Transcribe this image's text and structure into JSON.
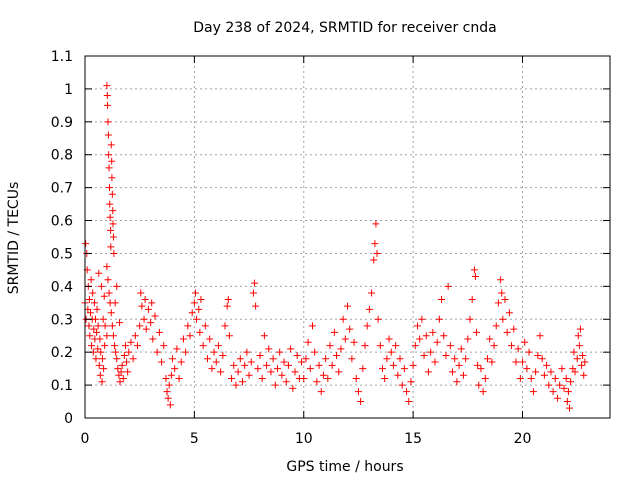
{
  "chart_data": {
    "type": "scatter",
    "title": "Day 238 of 2024, SRMTID for receiver cnda",
    "xlabel": "GPS time / hours",
    "ylabel": "SRMTID / TECUs",
    "xlim": [
      0,
      24
    ],
    "ylim": [
      0,
      1.1
    ],
    "xticks": [
      0,
      5,
      10,
      15,
      20
    ],
    "xtick_labels": [
      "0",
      "5",
      "10",
      "15",
      "20"
    ],
    "yticks": [
      0,
      0.1,
      0.2,
      0.3,
      0.4,
      0.5,
      0.6,
      0.7,
      0.8,
      0.9,
      1,
      1.1
    ],
    "ytick_labels": [
      "0",
      "0.1",
      "0.2",
      "0.3",
      "0.4",
      "0.5",
      "0.6",
      "0.7",
      "0.8",
      "0.9",
      "1",
      "1.1"
    ],
    "grid": true,
    "marker": "plus",
    "color": "#ff0000",
    "series": [
      {
        "name": "SRMTID",
        "points": [
          [
            0.0,
            0.35
          ],
          [
            0.03,
            0.53
          ],
          [
            0.05,
            0.3
          ],
          [
            0.08,
            0.5
          ],
          [
            0.1,
            0.45
          ],
          [
            0.13,
            0.33
          ],
          [
            0.15,
            0.4
          ],
          [
            0.18,
            0.28
          ],
          [
            0.2,
            0.36
          ],
          [
            0.22,
            0.25
          ],
          [
            0.25,
            0.32
          ],
          [
            0.28,
            0.42
          ],
          [
            0.3,
            0.22
          ],
          [
            0.33,
            0.3
          ],
          [
            0.35,
            0.38
          ],
          [
            0.38,
            0.2
          ],
          [
            0.4,
            0.27
          ],
          [
            0.43,
            0.35
          ],
          [
            0.45,
            0.24
          ],
          [
            0.48,
            0.3
          ],
          [
            0.5,
            0.18
          ],
          [
            0.53,
            0.26
          ],
          [
            0.55,
            0.33
          ],
          [
            0.58,
            0.21
          ],
          [
            0.6,
            0.28
          ],
          [
            0.63,
            0.44
          ],
          [
            0.65,
            0.16
          ],
          [
            0.68,
            0.24
          ],
          [
            0.7,
            0.13
          ],
          [
            0.72,
            0.2
          ],
          [
            0.75,
            0.4
          ],
          [
            0.78,
            0.11
          ],
          [
            0.8,
            0.18
          ],
          [
            0.83,
            0.3
          ],
          [
            0.85,
            0.15
          ],
          [
            0.88,
            0.37
          ],
          [
            0.9,
            0.22
          ],
          [
            0.92,
            0.28
          ],
          [
            1.0,
            1.01
          ],
          [
            1.02,
            0.98
          ],
          [
            1.03,
            0.95
          ],
          [
            1.05,
            0.9
          ],
          [
            1.07,
            0.86
          ],
          [
            1.08,
            0.8
          ],
          [
            1.1,
            0.76
          ],
          [
            1.12,
            0.7
          ],
          [
            1.13,
            0.65
          ],
          [
            1.15,
            0.61
          ],
          [
            1.17,
            0.57
          ],
          [
            1.18,
            0.52
          ],
          [
            1.2,
            0.83
          ],
          [
            1.22,
            0.78
          ],
          [
            1.23,
            0.73
          ],
          [
            1.25,
            0.68
          ],
          [
            1.27,
            0.63
          ],
          [
            1.28,
            0.59
          ],
          [
            1.3,
            0.55
          ],
          [
            1.32,
            0.5
          ],
          [
            1.0,
            0.46
          ],
          [
            1.05,
            0.42
          ],
          [
            1.1,
            0.38
          ],
          [
            1.15,
            0.35
          ],
          [
            1.2,
            0.32
          ],
          [
            1.25,
            0.28
          ],
          [
            1.3,
            0.25
          ],
          [
            1.35,
            0.22
          ],
          [
            1.4,
            0.2
          ],
          [
            1.45,
            0.18
          ],
          [
            1.5,
            0.15
          ],
          [
            1.55,
            0.13
          ],
          [
            1.6,
            0.11
          ],
          [
            1.65,
            0.14
          ],
          [
            1.7,
            0.16
          ],
          [
            1.75,
            0.12
          ],
          [
            1.8,
            0.19
          ],
          [
            1.85,
            0.22
          ],
          [
            1.9,
            0.17
          ],
          [
            1.95,
            0.14
          ],
          [
            1.0,
            0.25
          ],
          [
            1.38,
            0.35
          ],
          [
            1.45,
            0.4
          ],
          [
            1.58,
            0.29
          ],
          [
            2.0,
            0.2
          ],
          [
            2.1,
            0.23
          ],
          [
            2.2,
            0.18
          ],
          [
            2.3,
            0.25
          ],
          [
            2.4,
            0.22
          ],
          [
            2.5,
            0.28
          ],
          [
            2.55,
            0.38
          ],
          [
            2.6,
            0.34
          ],
          [
            2.7,
            0.3
          ],
          [
            2.75,
            0.36
          ],
          [
            2.8,
            0.27
          ],
          [
            2.9,
            0.33
          ],
          [
            3.0,
            0.29
          ],
          [
            3.05,
            0.35
          ],
          [
            3.1,
            0.24
          ],
          [
            3.2,
            0.31
          ],
          [
            3.3,
            0.2
          ],
          [
            3.4,
            0.26
          ],
          [
            3.5,
            0.17
          ],
          [
            3.6,
            0.22
          ],
          [
            3.7,
            0.12
          ],
          [
            3.75,
            0.08
          ],
          [
            3.8,
            0.06
          ],
          [
            3.85,
            0.1
          ],
          [
            3.9,
            0.04
          ],
          [
            3.95,
            0.13
          ],
          [
            4.0,
            0.18
          ],
          [
            4.1,
            0.15
          ],
          [
            4.2,
            0.21
          ],
          [
            4.3,
            0.12
          ],
          [
            4.4,
            0.17
          ],
          [
            4.5,
            0.24
          ],
          [
            4.6,
            0.2
          ],
          [
            4.7,
            0.28
          ],
          [
            4.8,
            0.25
          ],
          [
            4.9,
            0.32
          ],
          [
            5.0,
            0.35
          ],
          [
            5.05,
            0.38
          ],
          [
            5.1,
            0.3
          ],
          [
            5.2,
            0.33
          ],
          [
            5.25,
            0.26
          ],
          [
            5.3,
            0.36
          ],
          [
            5.4,
            0.22
          ],
          [
            5.5,
            0.28
          ],
          [
            5.6,
            0.18
          ],
          [
            5.7,
            0.24
          ],
          [
            5.8,
            0.15
          ],
          [
            5.9,
            0.2
          ],
          [
            6.0,
            0.17
          ],
          [
            6.1,
            0.22
          ],
          [
            6.2,
            0.14
          ],
          [
            6.3,
            0.19
          ],
          [
            6.4,
            0.28
          ],
          [
            6.5,
            0.34
          ],
          [
            6.55,
            0.36
          ],
          [
            6.6,
            0.25
          ],
          [
            6.7,
            0.12
          ],
          [
            6.8,
            0.16
          ],
          [
            6.9,
            0.1
          ],
          [
            7.0,
            0.14
          ],
          [
            7.1,
            0.18
          ],
          [
            7.2,
            0.11
          ],
          [
            7.3,
            0.16
          ],
          [
            7.4,
            0.2
          ],
          [
            7.5,
            0.13
          ],
          [
            7.6,
            0.17
          ],
          [
            7.7,
            0.38
          ],
          [
            7.75,
            0.41
          ],
          [
            7.8,
            0.34
          ],
          [
            7.9,
            0.15
          ],
          [
            8.0,
            0.19
          ],
          [
            8.1,
            0.12
          ],
          [
            8.2,
            0.25
          ],
          [
            8.3,
            0.16
          ],
          [
            8.4,
            0.21
          ],
          [
            8.5,
            0.14
          ],
          [
            8.6,
            0.18
          ],
          [
            8.7,
            0.1
          ],
          [
            8.8,
            0.15
          ],
          [
            8.9,
            0.2
          ],
          [
            9.0,
            0.13
          ],
          [
            9.1,
            0.17
          ],
          [
            9.2,
            0.11
          ],
          [
            9.3,
            0.16
          ],
          [
            9.4,
            0.21
          ],
          [
            9.5,
            0.09
          ],
          [
            9.6,
            0.14
          ],
          [
            9.7,
            0.19
          ],
          [
            9.8,
            0.12
          ],
          [
            9.9,
            0.17
          ],
          [
            10.0,
            0.12
          ],
          [
            10.1,
            0.18
          ],
          [
            10.2,
            0.23
          ],
          [
            10.3,
            0.15
          ],
          [
            10.4,
            0.28
          ],
          [
            10.5,
            0.2
          ],
          [
            10.6,
            0.11
          ],
          [
            10.7,
            0.16
          ],
          [
            10.8,
            0.08
          ],
          [
            10.9,
            0.13
          ],
          [
            11.0,
            0.18
          ],
          [
            11.1,
            0.12
          ],
          [
            11.2,
            0.22
          ],
          [
            11.3,
            0.16
          ],
          [
            11.4,
            0.26
          ],
          [
            11.5,
            0.19
          ],
          [
            11.6,
            0.14
          ],
          [
            11.7,
            0.21
          ],
          [
            11.8,
            0.3
          ],
          [
            11.9,
            0.24
          ],
          [
            12.0,
            0.34
          ],
          [
            12.1,
            0.27
          ],
          [
            12.2,
            0.18
          ],
          [
            12.3,
            0.23
          ],
          [
            12.4,
            0.12
          ],
          [
            12.5,
            0.08
          ],
          [
            12.6,
            0.05
          ],
          [
            12.7,
            0.15
          ],
          [
            12.8,
            0.22
          ],
          [
            12.9,
            0.28
          ],
          [
            13.0,
            0.33
          ],
          [
            13.1,
            0.38
          ],
          [
            13.2,
            0.48
          ],
          [
            13.25,
            0.53
          ],
          [
            13.3,
            0.59
          ],
          [
            13.35,
            0.5
          ],
          [
            13.4,
            0.3
          ],
          [
            13.5,
            0.22
          ],
          [
            13.6,
            0.15
          ],
          [
            13.7,
            0.12
          ],
          [
            13.8,
            0.18
          ],
          [
            13.9,
            0.24
          ],
          [
            14.0,
            0.2
          ],
          [
            14.1,
            0.16
          ],
          [
            14.2,
            0.22
          ],
          [
            14.3,
            0.13
          ],
          [
            14.4,
            0.18
          ],
          [
            14.5,
            0.1
          ],
          [
            14.6,
            0.15
          ],
          [
            14.7,
            0.08
          ],
          [
            14.8,
            0.05
          ],
          [
            14.9,
            0.11
          ],
          [
            15.0,
            0.16
          ],
          [
            15.1,
            0.22
          ],
          [
            15.2,
            0.28
          ],
          [
            15.3,
            0.24
          ],
          [
            15.4,
            0.3
          ],
          [
            15.5,
            0.19
          ],
          [
            15.6,
            0.25
          ],
          [
            15.7,
            0.14
          ],
          [
            15.8,
            0.2
          ],
          [
            15.9,
            0.26
          ],
          [
            16.0,
            0.17
          ],
          [
            16.1,
            0.23
          ],
          [
            16.2,
            0.3
          ],
          [
            16.3,
            0.36
          ],
          [
            16.4,
            0.25
          ],
          [
            16.5,
            0.19
          ],
          [
            16.6,
            0.4
          ],
          [
            16.7,
            0.22
          ],
          [
            16.8,
            0.14
          ],
          [
            16.9,
            0.18
          ],
          [
            17.0,
            0.11
          ],
          [
            17.1,
            0.16
          ],
          [
            17.2,
            0.21
          ],
          [
            17.3,
            0.13
          ],
          [
            17.4,
            0.18
          ],
          [
            17.5,
            0.24
          ],
          [
            17.6,
            0.3
          ],
          [
            17.7,
            0.36
          ],
          [
            17.8,
            0.45
          ],
          [
            17.85,
            0.43
          ],
          [
            17.9,
            0.26
          ],
          [
            17.95,
            0.16
          ],
          [
            18.0,
            0.1
          ],
          [
            18.1,
            0.15
          ],
          [
            18.2,
            0.08
          ],
          [
            18.3,
            0.12
          ],
          [
            18.4,
            0.18
          ],
          [
            18.5,
            0.24
          ],
          [
            18.6,
            0.17
          ],
          [
            18.7,
            0.22
          ],
          [
            18.8,
            0.28
          ],
          [
            18.9,
            0.35
          ],
          [
            19.0,
            0.42
          ],
          [
            19.05,
            0.38
          ],
          [
            19.1,
            0.3
          ],
          [
            19.2,
            0.36
          ],
          [
            19.3,
            0.26
          ],
          [
            19.4,
            0.32
          ],
          [
            19.5,
            0.22
          ],
          [
            19.6,
            0.27
          ],
          [
            19.7,
            0.17
          ],
          [
            19.8,
            0.21
          ],
          [
            19.9,
            0.12
          ],
          [
            20.0,
            0.17
          ],
          [
            20.1,
            0.23
          ],
          [
            20.2,
            0.15
          ],
          [
            20.3,
            0.2
          ],
          [
            20.4,
            0.12
          ],
          [
            20.5,
            0.08
          ],
          [
            20.6,
            0.14
          ],
          [
            20.7,
            0.19
          ],
          [
            20.8,
            0.25
          ],
          [
            20.9,
            0.18
          ],
          [
            21.0,
            0.13
          ],
          [
            21.1,
            0.16
          ],
          [
            21.2,
            0.1
          ],
          [
            21.3,
            0.14
          ],
          [
            21.4,
            0.08
          ],
          [
            21.5,
            0.12
          ],
          [
            21.6,
            0.06
          ],
          [
            21.7,
            0.1
          ],
          [
            21.8,
            0.15
          ],
          [
            21.9,
            0.09
          ],
          [
            22.0,
            0.12
          ],
          [
            22.05,
            0.05
          ],
          [
            22.1,
            0.08
          ],
          [
            22.15,
            0.03
          ],
          [
            22.2,
            0.11
          ],
          [
            22.3,
            0.15
          ],
          [
            22.35,
            0.2
          ],
          [
            22.4,
            0.14
          ],
          [
            22.5,
            0.18
          ],
          [
            22.55,
            0.25
          ],
          [
            22.6,
            0.22
          ],
          [
            22.65,
            0.27
          ],
          [
            22.7,
            0.16
          ],
          [
            22.75,
            0.19
          ],
          [
            22.8,
            0.13
          ],
          [
            22.85,
            0.17
          ]
        ]
      }
    ]
  }
}
